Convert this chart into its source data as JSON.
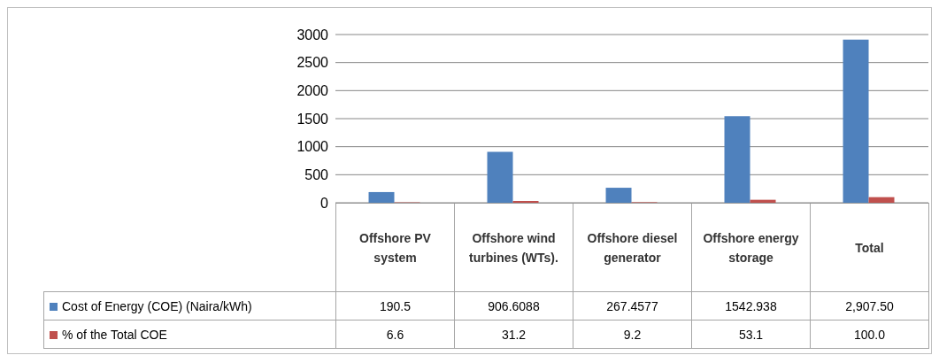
{
  "chart_data": {
    "type": "bar",
    "categories": [
      "Offshore PV system",
      "Offshore wind turbines (WTs).",
      "Offshore diesel generator",
      "Offshore energy storage",
      "Total"
    ],
    "series": [
      {
        "name": "Cost of Energy (COE) (Naira/kWh)",
        "color": "#4f81bd",
        "values": [
          190.5,
          906.6088,
          267.4577,
          1542.938,
          2907.5
        ],
        "value_labels": [
          "190.5",
          "906.6088",
          "267.4577",
          "1542.938",
          "2,907.50"
        ]
      },
      {
        "name": "% of the Total COE",
        "color": "#c0504d",
        "values": [
          6.6,
          31.2,
          9.2,
          53.1,
          100.0
        ],
        "value_labels": [
          "6.6",
          "31.2",
          "9.2",
          "53.1",
          "100.0"
        ]
      }
    ],
    "ylim": [
      0,
      3000
    ],
    "yticks": [
      0,
      500,
      1000,
      1500,
      2000,
      2500,
      3000
    ],
    "grid": "y",
    "legend": "bottom"
  }
}
